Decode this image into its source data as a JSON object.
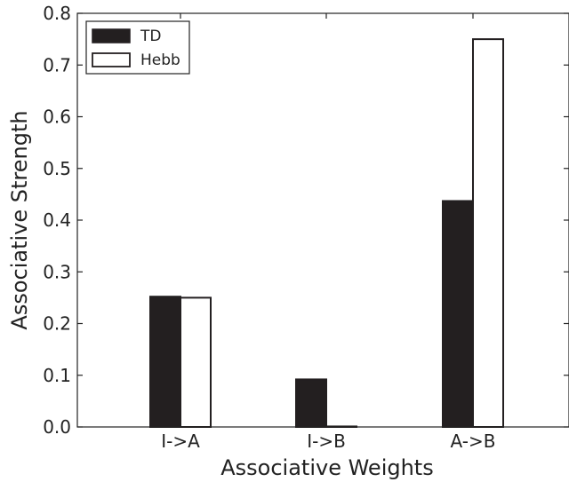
{
  "chart_data": {
    "type": "bar",
    "categories": [
      "I->A",
      "I->B",
      "A->B"
    ],
    "series": [
      {
        "name": "TD",
        "values": [
          0.252,
          0.092,
          0.437
        ],
        "fill": "#231f20",
        "stroke": "#231f20"
      },
      {
        "name": "Hebb",
        "values": [
          0.25,
          0.001,
          0.75
        ],
        "fill": "#ffffff",
        "stroke": "#231f20"
      }
    ],
    "xlabel": "Associative Weights",
    "ylabel": "Associative Strength",
    "ylim": [
      0,
      0.8
    ],
    "yticks": [
      "0.0",
      "0.1",
      "0.2",
      "0.3",
      "0.4",
      "0.5",
      "0.6",
      "0.7",
      "0.8"
    ],
    "legend_position": "top-left",
    "grid": false
  }
}
